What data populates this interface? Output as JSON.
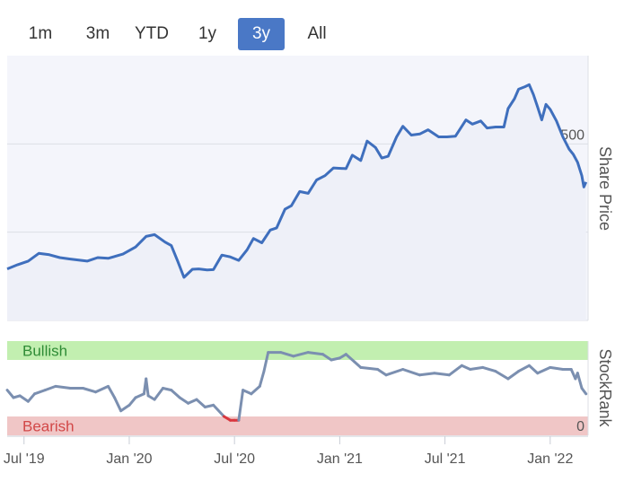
{
  "range_tabs": [
    {
      "label": "1m",
      "active": false
    },
    {
      "label": "3m",
      "active": false
    },
    {
      "label": "YTD",
      "active": false
    },
    {
      "label": "1y",
      "active": false
    },
    {
      "label": "3y",
      "active": true
    },
    {
      "label": "All",
      "active": false
    }
  ],
  "colors": {
    "price_line": "#3f6fbd",
    "price_area": "#f4f5fb",
    "rank_line": "#7b8fb0",
    "rank_bearish_line": "#d9363e",
    "bullish_band": "#c2efb0",
    "bearish_band": "#f0c6c6",
    "bullish_text": "#2f8c36",
    "bearish_text": "#d24848",
    "grid": "#dcdfe6"
  },
  "chart_data": [
    {
      "type": "line",
      "name": "price",
      "ylabel": "Share Price",
      "yticks": [
        0,
        250,
        500
      ],
      "ylim": [
        0,
        750
      ],
      "x_start": 2019.42,
      "x_end": 2022.18,
      "points": [
        [
          2019.42,
          146
        ],
        [
          2019.47,
          158
        ],
        [
          2019.52,
          168
        ],
        [
          2019.57,
          190
        ],
        [
          2019.62,
          186
        ],
        [
          2019.67,
          178
        ],
        [
          2019.72,
          174
        ],
        [
          2019.8,
          168
        ],
        [
          2019.85,
          178
        ],
        [
          2019.9,
          176
        ],
        [
          2019.97,
          188
        ],
        [
          2020.03,
          208
        ],
        [
          2020.08,
          238
        ],
        [
          2020.12,
          243
        ],
        [
          2020.17,
          222
        ],
        [
          2020.2,
          212
        ],
        [
          2020.23,
          168
        ],
        [
          2020.26,
          122
        ],
        [
          2020.3,
          145
        ],
        [
          2020.33,
          146
        ],
        [
          2020.37,
          143
        ],
        [
          2020.4,
          144
        ],
        [
          2020.44,
          185
        ],
        [
          2020.48,
          180
        ],
        [
          2020.52,
          170
        ],
        [
          2020.56,
          200
        ],
        [
          2020.59,
          232
        ],
        [
          2020.63,
          220
        ],
        [
          2020.67,
          256
        ],
        [
          2020.7,
          262
        ],
        [
          2020.74,
          315
        ],
        [
          2020.77,
          325
        ],
        [
          2020.81,
          365
        ],
        [
          2020.85,
          360
        ],
        [
          2020.89,
          398
        ],
        [
          2020.93,
          410
        ],
        [
          2020.97,
          432
        ],
        [
          2021.03,
          430
        ],
        [
          2021.06,
          468
        ],
        [
          2021.1,
          453
        ],
        [
          2021.13,
          508
        ],
        [
          2021.17,
          490
        ],
        [
          2021.2,
          460
        ],
        [
          2021.23,
          465
        ],
        [
          2021.27,
          520
        ],
        [
          2021.3,
          550
        ],
        [
          2021.34,
          525
        ],
        [
          2021.38,
          528
        ],
        [
          2021.42,
          540
        ],
        [
          2021.47,
          520
        ],
        [
          2021.51,
          520
        ],
        [
          2021.55,
          522
        ],
        [
          2021.6,
          568
        ],
        [
          2021.63,
          556
        ],
        [
          2021.67,
          565
        ],
        [
          2021.7,
          545
        ],
        [
          2021.74,
          548
        ],
        [
          2021.78,
          548
        ],
        [
          2021.8,
          600
        ],
        [
          2021.83,
          628
        ],
        [
          2021.85,
          655
        ],
        [
          2021.88,
          662
        ],
        [
          2021.9,
          668
        ],
        [
          2021.92,
          640
        ],
        [
          2021.94,
          605
        ],
        [
          2021.96,
          568
        ],
        [
          2021.98,
          612
        ],
        [
          2022.0,
          598
        ],
        [
          2022.03,
          565
        ],
        [
          2022.06,
          520
        ],
        [
          2022.09,
          485
        ],
        [
          2022.11,
          470
        ],
        [
          2022.13,
          448
        ],
        [
          2022.15,
          410
        ],
        [
          2022.16,
          378
        ],
        [
          2022.17,
          392
        ]
      ]
    },
    {
      "type": "line",
      "name": "stockrank",
      "ylabel": "StockRank",
      "yticks": [
        0
      ],
      "ylim": [
        0,
        100
      ],
      "bands": [
        {
          "label": "Bullish",
          "from": 80,
          "to": 100
        },
        {
          "label": "Bearish",
          "from": 0,
          "to": 20
        }
      ],
      "bearish_threshold": 20,
      "points": [
        [
          2019.42,
          48
        ],
        [
          2019.45,
          40
        ],
        [
          2019.48,
          42
        ],
        [
          2019.52,
          36
        ],
        [
          2019.55,
          44
        ],
        [
          2019.6,
          48
        ],
        [
          2019.65,
          52
        ],
        [
          2019.72,
          50
        ],
        [
          2019.78,
          50
        ],
        [
          2019.84,
          46
        ],
        [
          2019.9,
          52
        ],
        [
          2019.93,
          40
        ],
        [
          2019.96,
          26
        ],
        [
          2020.0,
          32
        ],
        [
          2020.03,
          40
        ],
        [
          2020.07,
          44
        ],
        [
          2020.08,
          60
        ],
        [
          2020.09,
          42
        ],
        [
          2020.12,
          38
        ],
        [
          2020.16,
          50
        ],
        [
          2020.2,
          48
        ],
        [
          2020.24,
          40
        ],
        [
          2020.28,
          34
        ],
        [
          2020.32,
          38
        ],
        [
          2020.36,
          30
        ],
        [
          2020.4,
          32
        ],
        [
          2020.45,
          20
        ],
        [
          2020.48,
          16
        ],
        [
          2020.5,
          16
        ],
        [
          2020.52,
          16
        ],
        [
          2020.54,
          48
        ],
        [
          2020.58,
          44
        ],
        [
          2020.62,
          52
        ],
        [
          2020.64,
          68
        ],
        [
          2020.66,
          88
        ],
        [
          2020.72,
          88
        ],
        [
          2020.78,
          84
        ],
        [
          2020.85,
          88
        ],
        [
          2020.92,
          86
        ],
        [
          2020.96,
          80
        ],
        [
          2021.0,
          82
        ],
        [
          2021.03,
          86
        ],
        [
          2021.07,
          78
        ],
        [
          2021.1,
          72
        ],
        [
          2021.18,
          70
        ],
        [
          2021.22,
          64
        ],
        [
          2021.3,
          70
        ],
        [
          2021.38,
          64
        ],
        [
          2021.45,
          66
        ],
        [
          2021.52,
          64
        ],
        [
          2021.58,
          74
        ],
        [
          2021.62,
          70
        ],
        [
          2021.68,
          72
        ],
        [
          2021.74,
          68
        ],
        [
          2021.8,
          60
        ],
        [
          2021.85,
          68
        ],
        [
          2021.9,
          74
        ],
        [
          2021.94,
          66
        ],
        [
          2022.0,
          72
        ],
        [
          2022.06,
          70
        ],
        [
          2022.1,
          70
        ],
        [
          2022.12,
          60
        ],
        [
          2022.13,
          66
        ],
        [
          2022.15,
          50
        ],
        [
          2022.17,
          44
        ]
      ]
    },
    {
      "type": "axis",
      "name": "x-axis",
      "ticks": [
        {
          "label": "Jul '19",
          "value": 2019.5
        },
        {
          "label": "Jan '20",
          "value": 2020.0
        },
        {
          "label": "Jul '20",
          "value": 2020.5
        },
        {
          "label": "Jan '21",
          "value": 2021.0
        },
        {
          "label": "Jul '21",
          "value": 2021.5
        },
        {
          "label": "Jan '22",
          "value": 2022.0
        }
      ]
    }
  ]
}
